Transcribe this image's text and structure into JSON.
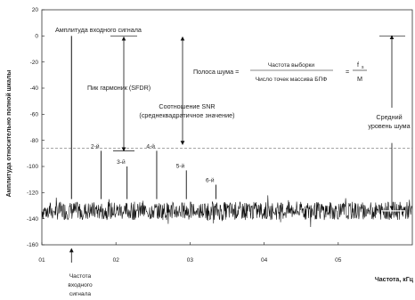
{
  "chart_data": {
    "type": "line",
    "ylabel": "Амплитуда относительно полной шкалы",
    "xlabel": "Частота, кГц",
    "ylim": [
      -160,
      20
    ],
    "yticks": [
      20,
      0,
      -20,
      -40,
      -60,
      -80,
      -100,
      -120,
      -140,
      -160
    ],
    "xticks": [
      "01",
      "02",
      "03",
      "04",
      "05"
    ],
    "xtick_values": [
      1,
      2,
      3,
      4,
      5
    ],
    "xlim": [
      1,
      6
    ],
    "signal": {
      "x": 1.4,
      "y": 0
    },
    "harmonics": [
      {
        "label": "2-й",
        "x": 1.8,
        "y": -88
      },
      {
        "label": "3-й",
        "x": 2.15,
        "y": -100
      },
      {
        "label": "4-й",
        "x": 2.55,
        "y": -88
      },
      {
        "label": "5-й",
        "x": 2.95,
        "y": -103
      },
      {
        "label": "6-й",
        "x": 3.35,
        "y": -114
      }
    ],
    "noise_floor": -134,
    "reference_line": -86,
    "annotations": {
      "input_amplitude": "Амплитуда входного сигнала",
      "sfdr": "Пик гармоник (SFDR)",
      "snr_line1": "Соотношение SNR",
      "snr_line2": "(среднеквадратичное значение)",
      "noise_band_label": "Полоса шума =",
      "noise_band_num": "Частота выборки",
      "noise_band_den": "Число точек массива БПФ",
      "noise_band_eq": "=",
      "noise_band_fs": "f",
      "noise_band_fs_sub": "s",
      "noise_band_m": "M",
      "avg_noise_line1": "Средний",
      "avg_noise_line2": "уровень шума",
      "input_freq_line1": "Частота",
      "input_freq_line2": "входного",
      "input_freq_line3": "сигнала"
    }
  }
}
